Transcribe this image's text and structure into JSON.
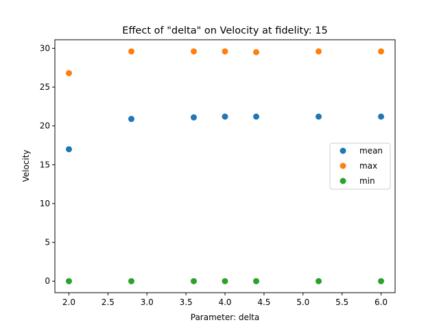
{
  "chart_data": {
    "type": "scatter",
    "title": "Effect of \"delta\" on Velocity at fidelity: 15",
    "xlabel": "Parameter: delta",
    "ylabel": "Velocity",
    "xlim": [
      1.82,
      6.18
    ],
    "ylim": [
      -1.48,
      31.1
    ],
    "xticks": [
      "2.0",
      "2.5",
      "3.0",
      "3.5",
      "4.0",
      "4.5",
      "5.0",
      "5.5",
      "6.0"
    ],
    "yticks": [
      "0",
      "5",
      "10",
      "15",
      "20",
      "25",
      "30"
    ],
    "grid": false,
    "legend_position": "center-right",
    "x": [
      2.0,
      2.8,
      3.6,
      4.0,
      4.4,
      5.2,
      6.0
    ],
    "series": [
      {
        "name": "mean",
        "color": "#1f77b4",
        "values": [
          17.0,
          20.9,
          21.1,
          21.2,
          21.2,
          21.2,
          21.2
        ]
      },
      {
        "name": "max",
        "color": "#ff7f0e",
        "values": [
          26.8,
          29.6,
          29.6,
          29.6,
          29.5,
          29.6,
          29.6
        ]
      },
      {
        "name": "min",
        "color": "#2ca02c",
        "values": [
          0.0,
          0.0,
          0.0,
          0.0,
          0.0,
          0.0,
          0.0
        ]
      }
    ]
  }
}
